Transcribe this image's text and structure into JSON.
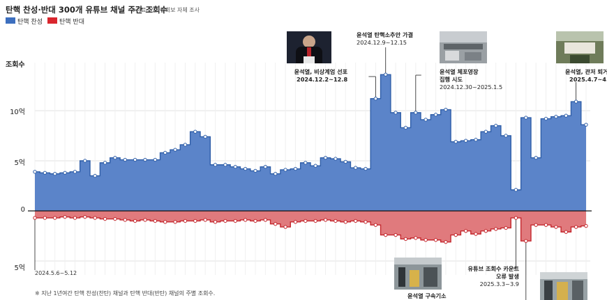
{
  "header": {
    "title": "탄핵 찬성·반대 300개 유튜브 채널 주간 조회수",
    "source": "※자료: 기자협회보 자체 조사"
  },
  "legend": [
    {
      "label": "탄핵 찬성",
      "color": "#3d6fbf"
    },
    {
      "label": "탄핵 반대",
      "color": "#d9262e"
    }
  ],
  "axis": {
    "ylabel": "조회수",
    "ticks": [
      "10억",
      "5억",
      "0",
      "5억"
    ]
  },
  "annotations": {
    "start_period": "2024.5.6~5.12",
    "martial": {
      "title": "윤석열, 비상계엄 선포",
      "date": "2024.12.2~12.8"
    },
    "impeach": {
      "title": "윤석열 탄핵소추안 가결",
      "date": "2024.12.9~12.15"
    },
    "arrest_attempt": {
      "title1": "윤석열 체포영장",
      "title2": "집행 시도",
      "date": "2024.12.30~2025.1.5"
    },
    "leave": {
      "title": "윤석열, 관저 퇴거",
      "date": "2025.4.7~4.13"
    },
    "count_error": {
      "title1": "유튜브 조회수 카운트",
      "title2": "오류 발생",
      "date": "2025.3.3~3.9"
    },
    "indict": {
      "title": "윤석열 구속기소"
    }
  },
  "footnote": "※ 지난 1년여간 탄핵 찬성(찬탄) 채널과 탄핵 반대(반탄) 채널의 주별 조회수.",
  "chart_data": {
    "type": "area",
    "title": "탄핵 찬성·반대 300개 유튜브 채널 주간 조회수",
    "ylabel": "조회수",
    "unit": "억",
    "ylim": [
      -5,
      14
    ],
    "x_start": "2024.5.6~5.12",
    "x_end": "2025.4.7~4.13",
    "series": [
      {
        "name": "탄핵 찬성",
        "color": "#3d6fbf",
        "values": [
          3.9,
          3.8,
          3.7,
          3.8,
          3.9,
          5.0,
          3.5,
          4.8,
          5.3,
          5.1,
          5.1,
          5.1,
          5.1,
          5.8,
          6.1,
          6.6,
          7.9,
          7.4,
          4.6,
          4.6,
          4.4,
          4.2,
          4.0,
          4.4,
          3.7,
          4.1,
          4.2,
          4.8,
          4.5,
          5.3,
          5.2,
          4.9,
          4.3,
          4.2,
          11.2,
          13.6,
          9.8,
          8.3,
          9.8,
          9.1,
          9.6,
          10.1,
          6.9,
          7.0,
          7.1,
          7.9,
          8.5,
          7.5,
          2.1,
          9.3,
          5.3,
          9.2,
          9.4,
          9.5,
          10.9,
          8.6
        ]
      },
      {
        "name": "탄핵 반대",
        "color": "#d9262e",
        "values": [
          0.7,
          0.7,
          0.7,
          0.6,
          0.7,
          0.6,
          0.7,
          0.8,
          0.8,
          0.9,
          1.0,
          0.9,
          1.0,
          1.1,
          1.1,
          1.0,
          1.0,
          0.9,
          1.1,
          1.0,
          1.0,
          0.9,
          1.0,
          0.9,
          1.3,
          1.6,
          1.1,
          1.0,
          1.0,
          0.9,
          1.0,
          1.1,
          1.0,
          1.1,
          1.4,
          2.4,
          2.4,
          2.8,
          2.7,
          2.9,
          2.9,
          3.1,
          2.4,
          2.0,
          2.3,
          2.0,
          1.8,
          1.7,
          0.7,
          3.0,
          1.4,
          1.4,
          1.6,
          2.1,
          1.6,
          1.5
        ]
      }
    ]
  }
}
